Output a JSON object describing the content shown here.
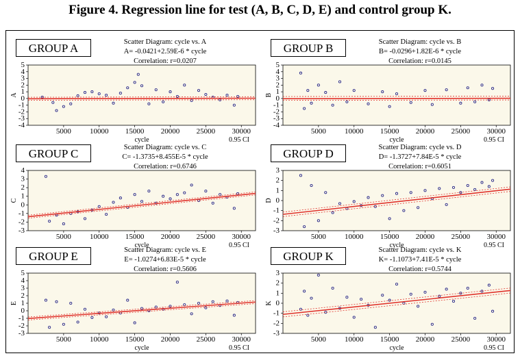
{
  "figure_title": "Figure 4. Regression line for test (A, B, C, D, E) and control group K.",
  "colors": {
    "points": "#2b2b8a",
    "regression": "#e0322b",
    "background": "#fbf8ea"
  },
  "chart_data": [
    {
      "type": "scatter",
      "group_label": "GROUP A",
      "title": "Scatter Diagram: cycle vs. A",
      "equation": "A= -0.0421+2.59E-6 * cycle",
      "correlation": "Correlation: r=0.0207",
      "xlabel": "cycle",
      "ylabel": "A",
      "ci_label": "0.95 CI",
      "xlim": [
        0,
        32000
      ],
      "ylim": [
        -4,
        5
      ],
      "xticks": [
        "5000",
        "10000",
        "15000",
        "20000",
        "25000",
        "30000"
      ],
      "yticks": [
        "-4",
        "-3",
        "-2",
        "-1",
        "0",
        "1",
        "2",
        "3",
        "4",
        "5"
      ],
      "regression": {
        "intercept": -0.0421,
        "slope": 2.59e-06
      },
      "points": [
        [
          2000,
          0.2
        ],
        [
          3500,
          -0.6
        ],
        [
          4000,
          -1.8
        ],
        [
          5000,
          -1.2
        ],
        [
          6000,
          -0.8
        ],
        [
          7000,
          0.4
        ],
        [
          8000,
          0.9
        ],
        [
          9000,
          1.0
        ],
        [
          10000,
          0.7
        ],
        [
          11000,
          0.5
        ],
        [
          12000,
          -0.7
        ],
        [
          13000,
          0.8
        ],
        [
          14000,
          1.6
        ],
        [
          15000,
          2.4
        ],
        [
          15500,
          3.6
        ],
        [
          16000,
          1.9
        ],
        [
          17000,
          -0.8
        ],
        [
          18000,
          1.3
        ],
        [
          19000,
          -0.5
        ],
        [
          20000,
          1.0
        ],
        [
          21000,
          0.3
        ],
        [
          22000,
          2.0
        ],
        [
          23000,
          -0.3
        ],
        [
          24000,
          1.2
        ],
        [
          25000,
          0.6
        ],
        [
          26000,
          0.2
        ],
        [
          27000,
          -0.2
        ],
        [
          28000,
          0.5
        ],
        [
          29000,
          -1.0
        ],
        [
          29500,
          0.3
        ]
      ],
      "band": {
        "upper": 0.9,
        "lower": -0.9
      }
    },
    {
      "type": "scatter",
      "group_label": "GROUP B",
      "title": "Scatter Diagram: cycle vs. B",
      "equation": "B= -0.0296+1.82E-6 * cycle",
      "correlation": "Correlation: r=0.0145",
      "xlabel": "cycle",
      "ylabel": "B",
      "ci_label": "0.95 CI",
      "xlim": [
        0,
        32000
      ],
      "ylim": [
        -4,
        5
      ],
      "xticks": [
        "5000",
        "10000",
        "15000",
        "20000",
        "25000",
        "30000"
      ],
      "yticks": [
        "-4",
        "-3",
        "-2",
        "-1",
        "0",
        "1",
        "2",
        "3",
        "4",
        "5"
      ],
      "regression": {
        "intercept": -0.0296,
        "slope": 1.82e-06
      },
      "points": [
        [
          2500,
          3.8
        ],
        [
          3000,
          -1.5
        ],
        [
          3500,
          1.2
        ],
        [
          4000,
          -0.7
        ],
        [
          5000,
          2.0
        ],
        [
          6000,
          0.9
        ],
        [
          7000,
          -1.0
        ],
        [
          8000,
          2.5
        ],
        [
          9000,
          -0.5
        ],
        [
          10000,
          1.2
        ],
        [
          12000,
          -0.8
        ],
        [
          14000,
          1.0
        ],
        [
          15000,
          -1.2
        ],
        [
          16000,
          0.7
        ],
        [
          18000,
          -0.6
        ],
        [
          20000,
          1.2
        ],
        [
          21000,
          -0.9
        ],
        [
          23000,
          1.3
        ],
        [
          25000,
          -0.7
        ],
        [
          26000,
          1.6
        ],
        [
          27000,
          -0.5
        ],
        [
          28000,
          2.0
        ],
        [
          29000,
          -0.2
        ],
        [
          29500,
          1.5
        ]
      ],
      "band": {
        "upper": 1.3,
        "lower": -1.0
      }
    },
    {
      "type": "scatter",
      "group_label": "GROUP C",
      "title": "Scatter Diagram: cycle vs. C",
      "equation": "C= -1.3735+8.455E-5 * cycle",
      "correlation": "Correlation: r=0.6746",
      "xlabel": "cycle",
      "ylabel": "C",
      "ci_label": "0.95 CI",
      "xlim": [
        0,
        32000
      ],
      "ylim": [
        -3,
        4
      ],
      "xticks": [
        "5000",
        "10000",
        "15000",
        "20000",
        "25000",
        "30000"
      ],
      "yticks": [
        "-3",
        "-2",
        "-1",
        "0",
        "1",
        "2",
        "3",
        "4"
      ],
      "regression": {
        "intercept": -1.3735,
        "slope": 8.455e-05
      },
      "points": [
        [
          2500,
          3.3
        ],
        [
          3000,
          -1.9
        ],
        [
          4000,
          -1.2
        ],
        [
          5000,
          -2.2
        ],
        [
          6000,
          -1.0
        ],
        [
          7000,
          -0.8
        ],
        [
          8000,
          -1.6
        ],
        [
          9000,
          -0.6
        ],
        [
          10000,
          -0.2
        ],
        [
          11000,
          -1.1
        ],
        [
          12000,
          0.3
        ],
        [
          13000,
          0.8
        ],
        [
          14000,
          -0.3
        ],
        [
          15000,
          1.2
        ],
        [
          16000,
          0.4
        ],
        [
          17000,
          1.6
        ],
        [
          18000,
          0.2
        ],
        [
          19000,
          1.0
        ],
        [
          20000,
          0.7
        ],
        [
          21000,
          1.2
        ],
        [
          22000,
          1.4
        ],
        [
          23000,
          2.3
        ],
        [
          24000,
          0.5
        ],
        [
          25000,
          1.6
        ],
        [
          26000,
          0.2
        ],
        [
          27000,
          1.2
        ],
        [
          28000,
          0.9
        ],
        [
          29000,
          -0.4
        ],
        [
          29500,
          1.3
        ]
      ],
      "band": {
        "upper": 0.7,
        "lower": -0.7
      }
    },
    {
      "type": "scatter",
      "group_label": "GROUP D",
      "title": "Scatter Diagram: cycle vs. D",
      "equation": "D= -1.3727+7.84E-5 * cycle",
      "correlation": "Correlation: r=0.6051",
      "xlabel": "cycle",
      "ylabel": "D",
      "ci_label": "0.95 CI",
      "xlim": [
        0,
        32000
      ],
      "ylim": [
        -3,
        3
      ],
      "xticks": [
        "5000",
        "10000",
        "15000",
        "20000",
        "25000",
        "30000"
      ],
      "yticks": [
        "-3",
        "-2",
        "-1",
        "0",
        "1",
        "2",
        "3"
      ],
      "regression": {
        "intercept": -1.3727,
        "slope": 7.84e-05
      },
      "points": [
        [
          2500,
          2.5
        ],
        [
          3000,
          -2.6
        ],
        [
          4000,
          1.5
        ],
        [
          5000,
          -2.0
        ],
        [
          6000,
          0.8
        ],
        [
          7000,
          -1.2
        ],
        [
          8000,
          -0.3
        ],
        [
          9000,
          -0.8
        ],
        [
          10000,
          -0.1
        ],
        [
          11000,
          -0.5
        ],
        [
          12000,
          0.3
        ],
        [
          13000,
          -0.6
        ],
        [
          14000,
          0.5
        ],
        [
          15000,
          -1.8
        ],
        [
          16000,
          0.7
        ],
        [
          17000,
          -1.0
        ],
        [
          18000,
          0.8
        ],
        [
          19000,
          -0.7
        ],
        [
          20000,
          1.0
        ],
        [
          21000,
          0.2
        ],
        [
          22000,
          1.2
        ],
        [
          23000,
          -0.4
        ],
        [
          24000,
          1.3
        ],
        [
          25000,
          0.8
        ],
        [
          26000,
          1.5
        ],
        [
          27000,
          1.1
        ],
        [
          28000,
          1.8
        ],
        [
          29000,
          1.4
        ],
        [
          29500,
          2.0
        ]
      ],
      "band": {
        "upper": 0.9,
        "lower": -0.9
      }
    },
    {
      "type": "scatter",
      "group_label": "GROUP E",
      "title": "Scatter Diagram: cycle vs. E",
      "equation": "E= -1.0274+6.83E-5 * cycle",
      "correlation": "Correlation: r=0.5606",
      "xlabel": "cycle",
      "ylabel": "E",
      "ci_label": "0.95 CI",
      "xlim": [
        0,
        32000
      ],
      "ylim": [
        -3,
        5
      ],
      "xticks": [
        "5000",
        "10000",
        "15000",
        "20000",
        "25000",
        "30000"
      ],
      "yticks": [
        "-3",
        "-2",
        "-1",
        "0",
        "1",
        "2",
        "3",
        "4",
        "5"
      ],
      "regression": {
        "intercept": -1.0274,
        "slope": 6.83e-05
      },
      "points": [
        [
          2500,
          1.4
        ],
        [
          3000,
          -2.2
        ],
        [
          4000,
          1.2
        ],
        [
          5000,
          -1.8
        ],
        [
          6000,
          1.0
        ],
        [
          7000,
          -1.5
        ],
        [
          8000,
          0.2
        ],
        [
          9000,
          -0.9
        ],
        [
          10000,
          -0.3
        ],
        [
          11000,
          -0.8
        ],
        [
          12000,
          0.1
        ],
        [
          13000,
          -0.3
        ],
        [
          14000,
          1.4
        ],
        [
          15000,
          -1.6
        ],
        [
          16000,
          0.3
        ],
        [
          17000,
          0.0
        ],
        [
          18000,
          0.5
        ],
        [
          19000,
          0.2
        ],
        [
          20000,
          0.6
        ],
        [
          21000,
          3.8
        ],
        [
          22000,
          0.8
        ],
        [
          23000,
          -0.4
        ],
        [
          24000,
          1.0
        ],
        [
          25000,
          0.4
        ],
        [
          26000,
          1.2
        ],
        [
          27000,
          0.7
        ],
        [
          28000,
          1.3
        ],
        [
          29000,
          -0.6
        ],
        [
          29500,
          1.1
        ]
      ],
      "band": {
        "upper": 0.8,
        "lower": -0.8
      }
    },
    {
      "type": "scatter",
      "group_label": "GROUP K",
      "title": "Scatter Diagram: cycle vs. K",
      "equation": "K= -1.1073+7.41E-5 * cycle",
      "correlation": "Correlation: r=0.5744",
      "xlabel": "cycle",
      "ylabel": "K",
      "ci_label": "0.95 CI",
      "xlim": [
        0,
        32000
      ],
      "ylim": [
        -3,
        3
      ],
      "xticks": [
        "5000",
        "10000",
        "15000",
        "20000",
        "25000",
        "30000"
      ],
      "yticks": [
        "-3",
        "-2",
        "-1",
        "0",
        "1",
        "2",
        "3"
      ],
      "regression": {
        "intercept": -1.1073,
        "slope": 7.41e-05
      },
      "points": [
        [
          2500,
          -0.6
        ],
        [
          3000,
          1.2
        ],
        [
          3500,
          -1.2
        ],
        [
          4000,
          0.5
        ],
        [
          5000,
          2.8
        ],
        [
          6000,
          -0.9
        ],
        [
          7000,
          1.5
        ],
        [
          8000,
          -0.5
        ],
        [
          9000,
          0.6
        ],
        [
          10000,
          -1.4
        ],
        [
          11000,
          0.4
        ],
        [
          12000,
          -0.2
        ],
        [
          13000,
          -2.4
        ],
        [
          14000,
          0.8
        ],
        [
          15000,
          0.3
        ],
        [
          16000,
          1.9
        ],
        [
          17000,
          0.0
        ],
        [
          18000,
          0.9
        ],
        [
          19000,
          -0.3
        ],
        [
          20000,
          1.1
        ],
        [
          21000,
          -2.1
        ],
        [
          22000,
          0.7
        ],
        [
          23000,
          1.4
        ],
        [
          24000,
          0.2
        ],
        [
          25000,
          1.0
        ],
        [
          26000,
          1.5
        ],
        [
          27000,
          -1.5
        ],
        [
          28000,
          1.2
        ],
        [
          29000,
          1.8
        ],
        [
          29500,
          -0.8
        ]
      ],
      "band": {
        "upper": 1.0,
        "lower": -1.0
      }
    }
  ]
}
